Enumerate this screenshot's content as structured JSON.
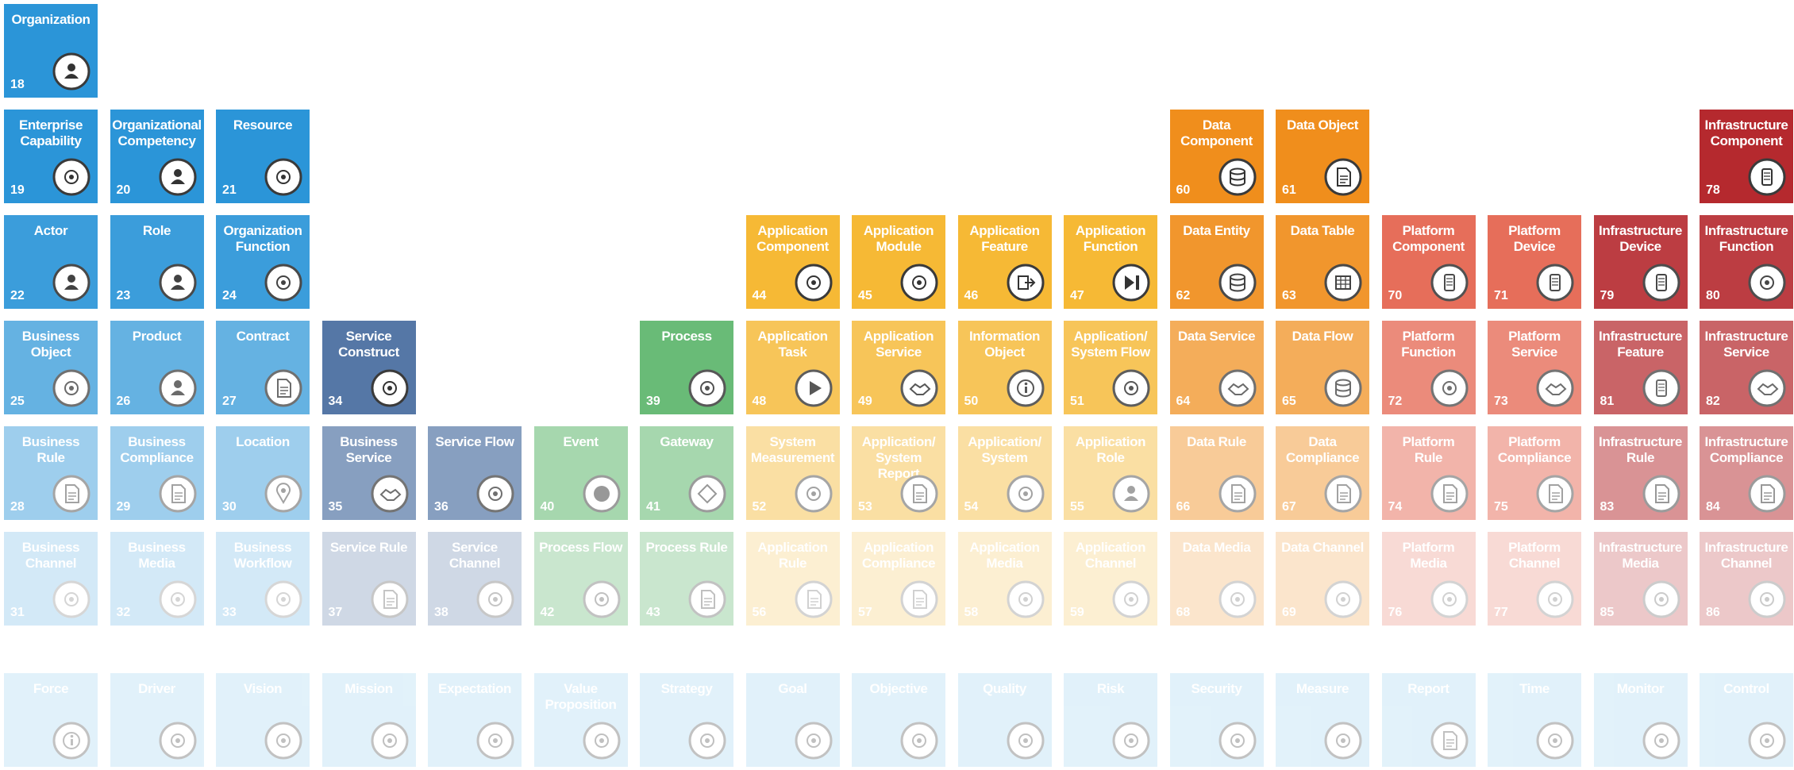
{
  "title": "",
  "groups": {
    "business": "#2b95d8",
    "service": "#5577a6",
    "process": "#4fb060",
    "application": "#f6b935",
    "data": "#f08e1c",
    "platform": "#e35b44",
    "infrastructure": "#b5292e",
    "motivation": "#9fd3ef"
  },
  "tiles": [
    {
      "col": 0,
      "row": 0,
      "name": "Organization",
      "num": "18",
      "group": "business",
      "icon": "people-gear-icon",
      "opacity": 1
    },
    {
      "col": 0,
      "row": 1,
      "name": "Enterprise\nCapability",
      "num": "19",
      "group": "business",
      "icon": "gears-icon",
      "opacity": 1
    },
    {
      "col": 1,
      "row": 1,
      "name": "Organizational\nCompetency",
      "num": "20",
      "group": "business",
      "icon": "person-badge-icon",
      "opacity": 1
    },
    {
      "col": 2,
      "row": 1,
      "name": "Resource",
      "num": "21",
      "group": "business",
      "icon": "tools-icon",
      "opacity": 1
    },
    {
      "col": 0,
      "row": 2,
      "name": "Actor",
      "num": "22",
      "group": "business",
      "icon": "actor-icon",
      "opacity": 0.92
    },
    {
      "col": 1,
      "row": 2,
      "name": "Role",
      "num": "23",
      "group": "business",
      "icon": "role-icon",
      "opacity": 0.92
    },
    {
      "col": 2,
      "row": 2,
      "name": "Organization\nFunction",
      "num": "24",
      "group": "business",
      "icon": "wrench-icon",
      "opacity": 0.92
    },
    {
      "col": 0,
      "row": 3,
      "name": "Business\nObject",
      "num": "25",
      "group": "business",
      "icon": "cog-icon",
      "opacity": 0.72
    },
    {
      "col": 1,
      "row": 3,
      "name": "Product",
      "num": "26",
      "group": "business",
      "icon": "factory-icon",
      "opacity": 0.72
    },
    {
      "col": 2,
      "row": 3,
      "name": "Contract",
      "num": "27",
      "group": "business",
      "icon": "contract-icon",
      "opacity": 0.72
    },
    {
      "col": 3,
      "row": 3,
      "name": "Service\nConstruct",
      "num": "34",
      "group": "service",
      "icon": "network-icon",
      "opacity": 1
    },
    {
      "col": 6,
      "row": 3,
      "name": "Process",
      "num": "39",
      "group": "process",
      "icon": "arrows-icon",
      "opacity": 0.85
    },
    {
      "col": 7,
      "row": 2,
      "name": "Application\nComponent",
      "num": "44",
      "group": "application",
      "icon": "component-icon",
      "opacity": 1
    },
    {
      "col": 8,
      "row": 2,
      "name": "Application\nModule",
      "num": "45",
      "group": "application",
      "icon": "module-icon",
      "opacity": 1
    },
    {
      "col": 9,
      "row": 2,
      "name": "Application\nFeature",
      "num": "46",
      "group": "application",
      "icon": "feature-icon",
      "opacity": 1
    },
    {
      "col": 10,
      "row": 2,
      "name": "Application\nFunction",
      "num": "47",
      "group": "application",
      "icon": "function-icon",
      "opacity": 1
    },
    {
      "col": 7,
      "row": 3,
      "name": "Application\nTask",
      "num": "48",
      "group": "application",
      "icon": "play-icon",
      "opacity": 0.82
    },
    {
      "col": 8,
      "row": 3,
      "name": "Application\nService",
      "num": "49",
      "group": "application",
      "icon": "handshake-icon",
      "opacity": 0.82
    },
    {
      "col": 9,
      "row": 3,
      "name": "Information\nObject",
      "num": "50",
      "group": "application",
      "icon": "info-icon",
      "opacity": 0.82
    },
    {
      "col": 10,
      "row": 3,
      "name": "Application/\nSystem Flow",
      "num": "51",
      "group": "application",
      "icon": "flow-icon",
      "opacity": 0.82
    },
    {
      "col": 11,
      "row": 1,
      "name": "Data\nComponent",
      "num": "60",
      "group": "data",
      "icon": "database-icon",
      "opacity": 1
    },
    {
      "col": 12,
      "row": 1,
      "name": "Data Object",
      "num": "61",
      "group": "data",
      "icon": "document-icon",
      "opacity": 1
    },
    {
      "col": 11,
      "row": 2,
      "name": "Data Entity",
      "num": "62",
      "group": "data",
      "icon": "database-icon",
      "opacity": 0.92
    },
    {
      "col": 12,
      "row": 2,
      "name": "Data Table",
      "num": "63",
      "group": "data",
      "icon": "table-icon",
      "opacity": 0.92
    },
    {
      "col": 11,
      "row": 3,
      "name": "Data Service",
      "num": "64",
      "group": "data",
      "icon": "handshake-icon",
      "opacity": 0.72
    },
    {
      "col": 12,
      "row": 3,
      "name": "Data Flow",
      "num": "65",
      "group": "data",
      "icon": "database-flow-icon",
      "opacity": 0.72
    },
    {
      "col": 13,
      "row": 2,
      "name": "Platform\nComponent",
      "num": "70",
      "group": "platform",
      "icon": "phone-icon",
      "opacity": 0.88
    },
    {
      "col": 14,
      "row": 2,
      "name": "Platform\nDevice",
      "num": "71",
      "group": "platform",
      "icon": "device-icon",
      "opacity": 0.88
    },
    {
      "col": 13,
      "row": 3,
      "name": "Platform\nFunction",
      "num": "72",
      "group": "platform",
      "icon": "flowchart-icon",
      "opacity": 0.7
    },
    {
      "col": 14,
      "row": 3,
      "name": "Platform\nService",
      "num": "73",
      "group": "platform",
      "icon": "handshake-icon",
      "opacity": 0.7
    },
    {
      "col": 16,
      "row": 1,
      "name": "Infrastructure\nComponent",
      "num": "78",
      "group": "infrastructure",
      "icon": "server-component-icon",
      "opacity": 1
    },
    {
      "col": 15,
      "row": 2,
      "name": "Infrastructure\nDevice",
      "num": "79",
      "group": "infrastructure",
      "icon": "server-icon",
      "opacity": 0.9
    },
    {
      "col": 16,
      "row": 2,
      "name": "Infrastructure\nFunction",
      "num": "80",
      "group": "infrastructure",
      "icon": "globe-gear-icon",
      "opacity": 0.9
    },
    {
      "col": 15,
      "row": 3,
      "name": "Infrastructure\nFeature",
      "num": "81",
      "group": "infrastructure",
      "icon": "router-icon",
      "opacity": 0.72
    },
    {
      "col": 16,
      "row": 3,
      "name": "Infrastructure\nService",
      "num": "82",
      "group": "infrastructure",
      "icon": "handshake-icon",
      "opacity": 0.72
    },
    {
      "col": 0,
      "row": 4,
      "name": "Business\nRule",
      "num": "28",
      "group": "business",
      "icon": "rule-icon",
      "opacity": 0.45
    },
    {
      "col": 1,
      "row": 4,
      "name": "Business\nCompliance",
      "num": "29",
      "group": "business",
      "icon": "compliance-icon",
      "opacity": 0.45
    },
    {
      "col": 2,
      "row": 4,
      "name": "Location",
      "num": "30",
      "group": "business",
      "icon": "pin-icon",
      "opacity": 0.45
    },
    {
      "col": 3,
      "row": 4,
      "name": "Business\nService",
      "num": "35",
      "group": "service",
      "icon": "handshake-icon",
      "opacity": 0.7
    },
    {
      "col": 4,
      "row": 4,
      "name": "Service Flow",
      "num": "36",
      "group": "service",
      "icon": "cycle-icon",
      "opacity": 0.7
    },
    {
      "col": 5,
      "row": 4,
      "name": "Event",
      "num": "40",
      "group": "process",
      "icon": "circle-icon",
      "opacity": 0.5
    },
    {
      "col": 6,
      "row": 4,
      "name": "Gateway",
      "num": "41",
      "group": "process",
      "icon": "diamond-icon",
      "opacity": 0.5
    },
    {
      "col": 7,
      "row": 4,
      "name": "System\nMeasurement",
      "num": "52",
      "group": "application",
      "icon": "barcode-icon",
      "opacity": 0.45
    },
    {
      "col": 8,
      "row": 4,
      "name": "Application/\nSystem Report",
      "num": "53",
      "group": "application",
      "icon": "report-icon",
      "opacity": 0.45
    },
    {
      "col": 9,
      "row": 4,
      "name": "Application/\nSystem",
      "num": "54",
      "group": "application",
      "icon": "window-icon",
      "opacity": 0.45
    },
    {
      "col": 10,
      "row": 4,
      "name": "Application\nRole",
      "num": "55",
      "group": "application",
      "icon": "role-icon",
      "opacity": 0.45
    },
    {
      "col": 11,
      "row": 4,
      "name": "Data Rule",
      "num": "66",
      "group": "data",
      "icon": "rule-icon",
      "opacity": 0.45
    },
    {
      "col": 12,
      "row": 4,
      "name": "Data\nCompliance",
      "num": "67",
      "group": "data",
      "icon": "compliance-icon",
      "opacity": 0.45
    },
    {
      "col": 13,
      "row": 4,
      "name": "Platform\nRule",
      "num": "74",
      "group": "platform",
      "icon": "rule-icon",
      "opacity": 0.45
    },
    {
      "col": 14,
      "row": 4,
      "name": "Platform\nCompliance",
      "num": "75",
      "group": "platform",
      "icon": "compliance-icon",
      "opacity": 0.45
    },
    {
      "col": 15,
      "row": 4,
      "name": "Infrastructure\nRule",
      "num": "83",
      "group": "infrastructure",
      "icon": "rule-icon",
      "opacity": 0.5
    },
    {
      "col": 16,
      "row": 4,
      "name": "Infrastructure\nCompliance",
      "num": "84",
      "group": "infrastructure",
      "icon": "compliance-icon",
      "opacity": 0.5
    },
    {
      "col": 0,
      "row": 5,
      "name": "Business\nChannel",
      "num": "31",
      "group": "business",
      "icon": "presentation-icon",
      "opacity": 0.2
    },
    {
      "col": 1,
      "row": 5,
      "name": "Business\nMedia",
      "num": "32",
      "group": "business",
      "icon": "printer-icon",
      "opacity": 0.2
    },
    {
      "col": 2,
      "row": 5,
      "name": "Business\nWorkflow",
      "num": "33",
      "group": "business",
      "icon": "gears-icon",
      "opacity": 0.2
    },
    {
      "col": 3,
      "row": 5,
      "name": "Service Rule",
      "num": "37",
      "group": "service",
      "icon": "rule-icon",
      "opacity": 0.28
    },
    {
      "col": 4,
      "row": 5,
      "name": "Service\nChannel",
      "num": "38",
      "group": "service",
      "icon": "presentation-icon",
      "opacity": 0.28
    },
    {
      "col": 5,
      "row": 5,
      "name": "Process Flow",
      "num": "42",
      "group": "process",
      "icon": "arrows-icon",
      "opacity": 0.3
    },
    {
      "col": 6,
      "row": 5,
      "name": "Process Rule",
      "num": "43",
      "group": "process",
      "icon": "rule-icon",
      "opacity": 0.3
    },
    {
      "col": 7,
      "row": 5,
      "name": "Application\nRule",
      "num": "56",
      "group": "application",
      "icon": "rule-icon",
      "opacity": 0.22
    },
    {
      "col": 8,
      "row": 5,
      "name": "Application\nCompliance",
      "num": "57",
      "group": "application",
      "icon": "compliance-icon",
      "opacity": 0.22
    },
    {
      "col": 9,
      "row": 5,
      "name": "Application\nMedia",
      "num": "58",
      "group": "application",
      "icon": "printer-icon",
      "opacity": 0.22
    },
    {
      "col": 10,
      "row": 5,
      "name": "Application\nChannel",
      "num": "59",
      "group": "application",
      "icon": "presentation-icon",
      "opacity": 0.22
    },
    {
      "col": 11,
      "row": 5,
      "name": "Data Media",
      "num": "68",
      "group": "data",
      "icon": "printer-icon",
      "opacity": 0.22
    },
    {
      "col": 12,
      "row": 5,
      "name": "Data Channel",
      "num": "69",
      "group": "data",
      "icon": "presentation-icon",
      "opacity": 0.22
    },
    {
      "col": 13,
      "row": 5,
      "name": "Platform\nMedia",
      "num": "76",
      "group": "platform",
      "icon": "printer-icon",
      "opacity": 0.22
    },
    {
      "col": 14,
      "row": 5,
      "name": "Platform\nChannel",
      "num": "77",
      "group": "platform",
      "icon": "presentation-icon",
      "opacity": 0.22
    },
    {
      "col": 15,
      "row": 5,
      "name": "Infrastructure\nMedia",
      "num": "85",
      "group": "infrastructure",
      "icon": "printer-icon",
      "opacity": 0.25
    },
    {
      "col": 16,
      "row": 5,
      "name": "Infrastructure\nChannel",
      "num": "86",
      "group": "infrastructure",
      "icon": "presentation-icon",
      "opacity": 0.25
    },
    {
      "col": 0,
      "row": 6,
      "name": "Force",
      "num": "",
      "group": "motivation",
      "icon": "info-icon",
      "opacity": 0.3
    },
    {
      "col": 1,
      "row": 6,
      "name": "Driver",
      "num": "",
      "group": "motivation",
      "icon": "cog-icon",
      "opacity": 0.3
    },
    {
      "col": 2,
      "row": 6,
      "name": "Vision",
      "num": "",
      "group": "motivation",
      "icon": "eye-icon",
      "opacity": 0.3
    },
    {
      "col": 3,
      "row": 6,
      "name": "Mission",
      "num": "",
      "group": "motivation",
      "icon": "compass-icon",
      "opacity": 0.3
    },
    {
      "col": 4,
      "row": 6,
      "name": "Expectation",
      "num": "",
      "group": "motivation",
      "icon": "chart-icon",
      "opacity": 0.3
    },
    {
      "col": 5,
      "row": 6,
      "name": "Value\nProposition",
      "num": "",
      "group": "motivation",
      "icon": "gem-icon",
      "opacity": 0.3
    },
    {
      "col": 6,
      "row": 6,
      "name": "Strategy",
      "num": "",
      "group": "motivation",
      "icon": "chess-icon",
      "opacity": 0.3
    },
    {
      "col": 7,
      "row": 6,
      "name": "Goal",
      "num": "",
      "group": "motivation",
      "icon": "target-icon",
      "opacity": 0.3
    },
    {
      "col": 8,
      "row": 6,
      "name": "Objective",
      "num": "",
      "group": "motivation",
      "icon": "target-icon",
      "opacity": 0.3
    },
    {
      "col": 9,
      "row": 6,
      "name": "Quality",
      "num": "",
      "group": "motivation",
      "icon": "cog-icon",
      "opacity": 0.3
    },
    {
      "col": 10,
      "row": 6,
      "name": "Risk",
      "num": "",
      "group": "motivation",
      "icon": "hazard-icon",
      "opacity": 0.3
    },
    {
      "col": 11,
      "row": 6,
      "name": "Security",
      "num": "",
      "group": "motivation",
      "icon": "lock-icon",
      "opacity": 0.3
    },
    {
      "col": 12,
      "row": 6,
      "name": "Measure",
      "num": "",
      "group": "motivation",
      "icon": "gauge-icon",
      "opacity": 0.3
    },
    {
      "col": 13,
      "row": 6,
      "name": "Report",
      "num": "",
      "group": "motivation",
      "icon": "report-icon",
      "opacity": 0.3
    },
    {
      "col": 14,
      "row": 6,
      "name": "Time",
      "num": "",
      "group": "motivation",
      "icon": "clock-icon",
      "opacity": 0.3
    },
    {
      "col": 15,
      "row": 6,
      "name": "Monitor",
      "num": "",
      "group": "motivation",
      "icon": "monitor-icon",
      "opacity": 0.3
    },
    {
      "col": 16,
      "row": 6,
      "name": "Control",
      "num": "",
      "group": "motivation",
      "icon": "sliders-icon",
      "opacity": 0.3
    }
  ]
}
